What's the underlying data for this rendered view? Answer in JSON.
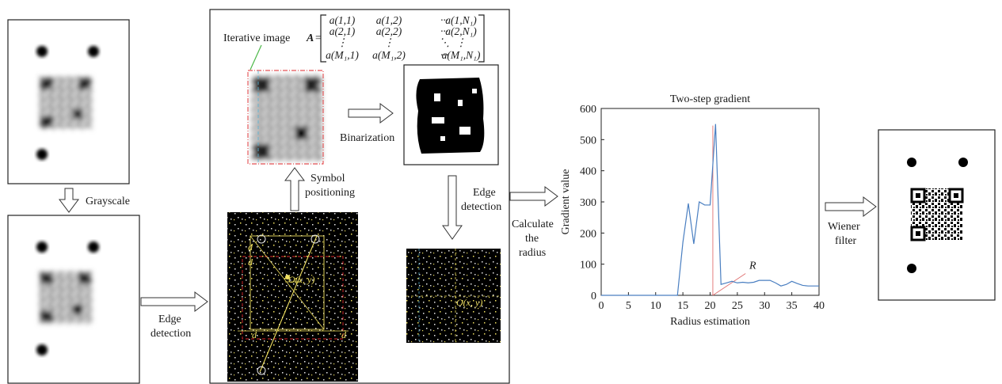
{
  "labels": {
    "grayscale": "Grayscale",
    "edge_detection_left_1": "Edge",
    "edge_detection_left_2": "detection",
    "symbol_positioning_1": "Symbol",
    "symbol_positioning_2": "positioning",
    "binarization": "Binarization",
    "edge_detection_mid_1": "Edge",
    "edge_detection_mid_2": "detection",
    "calculate_radius_1": "Calculate",
    "calculate_radius_2": "the",
    "calculate_radius_3": "radius",
    "wiener_1": "Wiener",
    "wiener_2": "filter",
    "iterative_image": "Iterative image",
    "matrix_symbol": "A",
    "matrix_rows": [
      [
        "a(1,1)",
        "a(1,2)",
        "···",
        "a(1,N₁)"
      ],
      [
        "a(2,1)",
        "a(2,2)",
        "···",
        "a(2,N₁)"
      ],
      [
        "⋮",
        "⋮",
        "⋱",
        "⋮"
      ],
      [
        "a(M₁,1)",
        "a(M₁,2)",
        "···",
        "a(M₁,N₁)"
      ]
    ],
    "d": "d",
    "center_label": "O(x, y)",
    "r_label": "R"
  },
  "chart_data": {
    "type": "line",
    "title": "Two-step gradient",
    "xlabel": "Radius estimation",
    "ylabel": "Gradient value",
    "xlim": [
      0,
      40
    ],
    "ylim": [
      0,
      600
    ],
    "xticks": [
      0,
      5,
      10,
      15,
      20,
      25,
      30,
      35,
      40
    ],
    "yticks": [
      0,
      100,
      200,
      300,
      400,
      500,
      600
    ],
    "series": [
      {
        "color": "#4a7fc1",
        "x": [
          0,
          14,
          15,
          16,
          17,
          18,
          19,
          20,
          21,
          22,
          23,
          24,
          25,
          26,
          27,
          28,
          29,
          30,
          31,
          32,
          33,
          34,
          35,
          36,
          37,
          38,
          39,
          40
        ],
        "y": [
          0,
          0,
          170,
          295,
          165,
          300,
          290,
          290,
          550,
          35,
          40,
          45,
          40,
          42,
          40,
          42,
          48,
          48,
          48,
          40,
          30,
          35,
          45,
          38,
          32,
          30,
          30,
          30
        ]
      }
    ],
    "annotation": {
      "label": "R",
      "x": 20.5,
      "color": "#e07070"
    }
  },
  "colors": {
    "yellow": "#f0e060",
    "dash_red": "#e0282c",
    "green_pointer": "#4cb848",
    "arrow_stroke": "#333333"
  }
}
